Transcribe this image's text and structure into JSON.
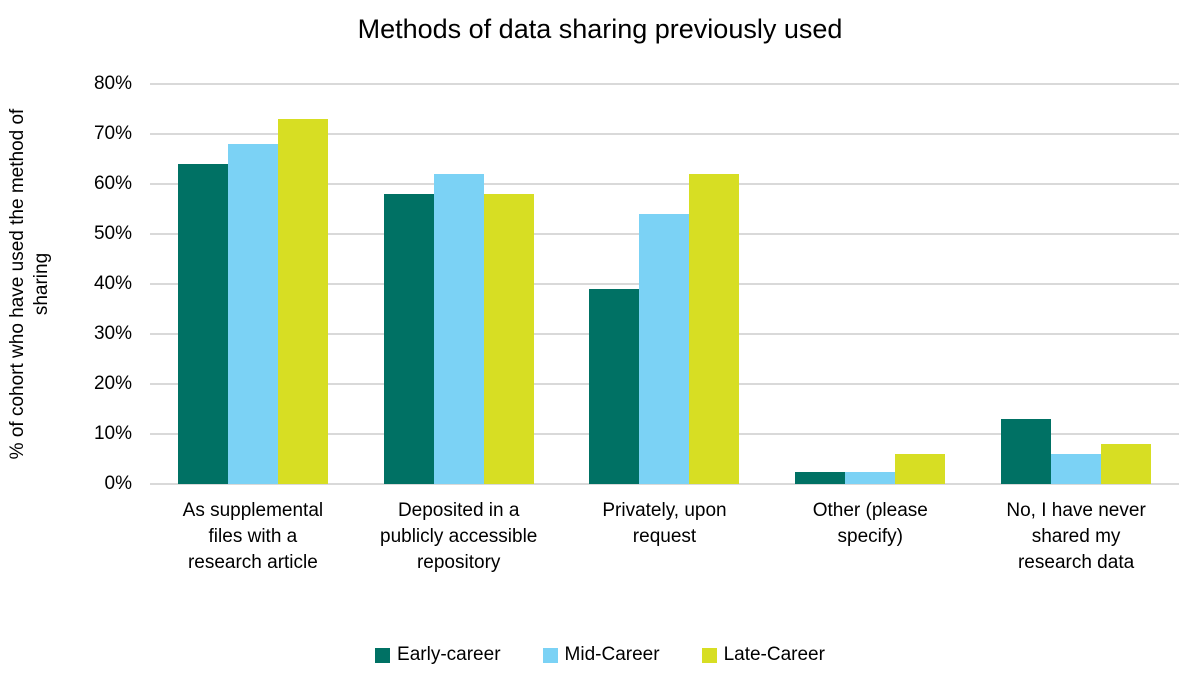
{
  "chart_data": {
    "type": "bar",
    "title": "Methods of data sharing previously used",
    "categories": [
      "As supplemental files with a research article",
      "Deposited in a publicly accessible repository",
      "Privately, upon request",
      "Other (please specify)",
      "No, I have never shared my research data"
    ],
    "series": [
      {
        "name": "Early-career",
        "color": "#007164",
        "values": [
          64,
          58,
          39,
          2.5,
          13
        ]
      },
      {
        "name": "Mid-Career",
        "color": "#7BD2F5",
        "values": [
          68,
          62,
          54,
          2.5,
          6
        ]
      },
      {
        "name": "Late-Career",
        "color": "#D7DE23",
        "values": [
          73,
          58,
          62,
          6,
          8
        ]
      }
    ],
    "ylabel": "% of cohort who have used the method of sharing",
    "ylabel_lines": [
      "% of cohort who have used the method of",
      "sharing"
    ],
    "y_ticks": [
      "80%",
      "70%",
      "60%",
      "50%",
      "40%",
      "30%",
      "20%",
      "10%",
      "0%"
    ],
    "ylim": [
      0,
      80
    ],
    "grid": true,
    "legend_position": "bottom"
  },
  "colors": {
    "gridline": "#D9D9D9",
    "text": "#000000",
    "background": "#FFFFFF"
  }
}
